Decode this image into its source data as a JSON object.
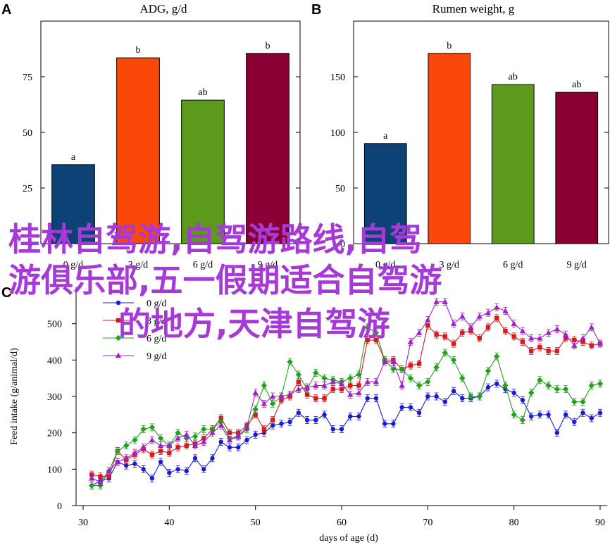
{
  "panels": {
    "A": "A",
    "B": "B",
    "C": "C"
  },
  "watermark": {
    "line1": "桂林自驾游,自驾游路线,自驾",
    "line2": "游俱乐部,五一假期适合自驾游",
    "line3": "的地方,天津自驾游"
  },
  "chart_data": [
    {
      "panel": "A",
      "type": "bar",
      "title": "ADG, g/d",
      "categories": [
        "0 g/d",
        "3 g/d",
        "6 g/d",
        "9 g/d"
      ],
      "values": [
        35.5,
        83.5,
        64.5,
        85.5
      ],
      "labels": [
        "a",
        "b",
        "ab",
        "b"
      ],
      "colors": [
        "#0c4276",
        "#f9480a",
        "#5c9a1c",
        "#8b0032"
      ],
      "ylim": [
        0,
        100
      ],
      "yticks": [
        0,
        25,
        50,
        75
      ]
    },
    {
      "panel": "B",
      "type": "bar",
      "title": "Rumen weight, g",
      "categories": [
        "0 g/d",
        "3 g/d",
        "6 g/d",
        "9 g/d"
      ],
      "values": [
        90,
        171,
        143,
        136
      ],
      "labels": [
        "a",
        "b",
        "ab",
        "ab"
      ],
      "colors": [
        "#0c4276",
        "#f9480a",
        "#5c9a1c",
        "#8b0032"
      ],
      "ylim": [
        0,
        200
      ],
      "yticks": [
        0,
        50,
        100,
        150
      ]
    },
    {
      "panel": "C",
      "type": "line",
      "xlabel": "days of age (d)",
      "ylabel": "Feed intake (g/animal/d)",
      "xlim": [
        30,
        90
      ],
      "ylim": [
        0,
        600
      ],
      "xticks": [
        30,
        40,
        50,
        60,
        70,
        80,
        90
      ],
      "yticks": [
        0,
        100,
        200,
        300,
        400,
        500
      ],
      "legend_position": "top-left",
      "x": [
        31,
        32,
        33,
        34,
        35,
        36,
        37,
        38,
        39,
        40,
        41,
        42,
        43,
        44,
        45,
        46,
        47,
        48,
        49,
        50,
        51,
        52,
        53,
        54,
        55,
        56,
        57,
        58,
        59,
        60,
        61,
        62,
        63,
        64,
        65,
        66,
        67,
        68,
        69,
        70,
        71,
        72,
        73,
        74,
        75,
        76,
        77,
        78,
        79,
        80,
        81,
        82,
        83,
        84,
        85,
        86,
        87,
        88,
        89,
        90
      ],
      "series": [
        {
          "name": "0 g/d",
          "color": "#1b1bd1",
          "marker": "circle",
          "values": [
            55,
            68,
            75,
            120,
            110,
            115,
            100,
            75,
            120,
            90,
            100,
            95,
            130,
            100,
            130,
            175,
            160,
            160,
            180,
            195,
            200,
            220,
            225,
            230,
            255,
            235,
            235,
            250,
            210,
            210,
            245,
            245,
            295,
            295,
            225,
            225,
            270,
            270,
            255,
            300,
            300,
            285,
            315,
            295,
            295,
            300,
            325,
            335,
            320,
            310,
            290,
            245,
            250,
            250,
            200,
            250,
            230,
            255,
            240,
            255
          ]
        },
        {
          "name": "3 g/d",
          "color": "#d9191e",
          "marker": "square",
          "values": [
            85,
            80,
            80,
            150,
            125,
            140,
            155,
            140,
            150,
            145,
            160,
            165,
            170,
            185,
            210,
            240,
            200,
            200,
            220,
            250,
            210,
            235,
            290,
            300,
            340,
            305,
            295,
            295,
            320,
            320,
            330,
            330,
            455,
            455,
            400,
            400,
            375,
            385,
            390,
            495,
            470,
            465,
            445,
            475,
            480,
            460,
            490,
            515,
            480,
            465,
            450,
            425,
            435,
            425,
            425,
            460,
            455,
            450,
            440,
            445
          ]
        },
        {
          "name": "6 g/d",
          "color": "#22a11c",
          "marker": "diamond",
          "values": [
            55,
            55,
            95,
            150,
            165,
            180,
            210,
            215,
            185,
            165,
            200,
            185,
            190,
            210,
            210,
            230,
            185,
            190,
            210,
            265,
            330,
            280,
            300,
            395,
            360,
            320,
            365,
            350,
            345,
            340,
            350,
            360,
            490,
            475,
            400,
            375,
            375,
            350,
            330,
            340,
            380,
            420,
            400,
            350,
            300,
            300,
            370,
            410,
            330,
            250,
            235,
            310,
            345,
            330,
            320,
            320,
            285,
            285,
            330,
            335
          ]
        },
        {
          "name": "9 g/d",
          "color": "#a020c8",
          "marker": "triangle",
          "values": [
            75,
            65,
            95,
            120,
            130,
            145,
            160,
            180,
            165,
            165,
            185,
            195,
            165,
            175,
            200,
            220,
            180,
            190,
            215,
            310,
            280,
            300,
            300,
            305,
            320,
            325,
            330,
            330,
            340,
            335,
            305,
            310,
            340,
            340,
            395,
            395,
            330,
            450,
            475,
            510,
            560,
            560,
            500,
            520,
            490,
            520,
            530,
            545,
            535,
            500,
            480,
            460,
            460,
            475,
            485,
            470,
            440,
            460,
            490,
            445
          ]
        }
      ]
    }
  ]
}
